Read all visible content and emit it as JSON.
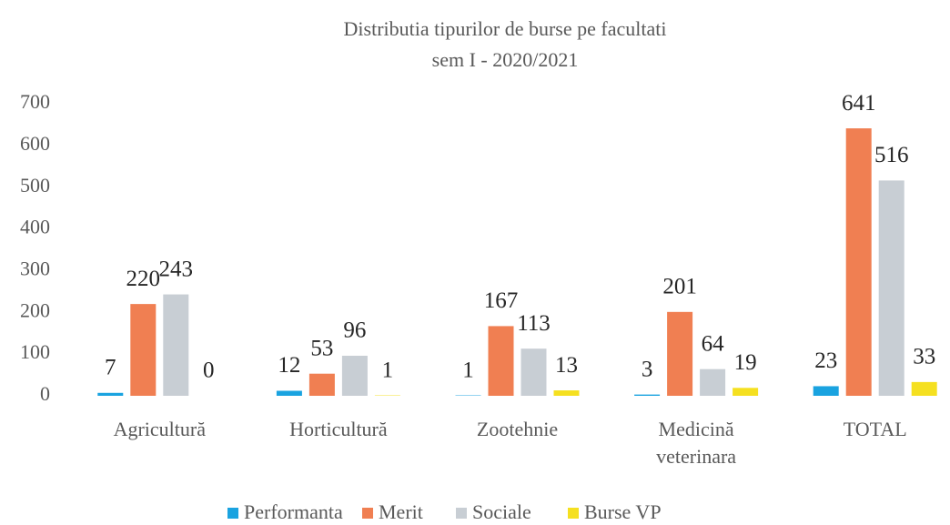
{
  "chart_data": {
    "type": "bar",
    "title": "Distributia tipurilor de burse pe facultati",
    "subtitle": "sem I - 2020/2021",
    "categories": [
      "Agricultură",
      "Horticultură",
      "Zootehnie",
      "Medicină\nveterinara",
      "TOTAL"
    ],
    "series": [
      {
        "name": "Performanta",
        "color": "#1aa3e0",
        "values": [
          7,
          12,
          1,
          3,
          23
        ]
      },
      {
        "name": "Merit",
        "color": "#f07f52",
        "values": [
          220,
          53,
          167,
          201,
          641
        ]
      },
      {
        "name": "Sociale",
        "color": "#c8ced4",
        "values": [
          243,
          96,
          113,
          64,
          516
        ]
      },
      {
        "name": "Burse VP",
        "color": "#f5e020",
        "values": [
          0,
          1,
          13,
          19,
          33
        ]
      }
    ],
    "ylim": [
      0,
      700
    ],
    "yticks": [
      0,
      100,
      200,
      300,
      400,
      500,
      600,
      700
    ],
    "grid": false,
    "legend": "bottom"
  }
}
